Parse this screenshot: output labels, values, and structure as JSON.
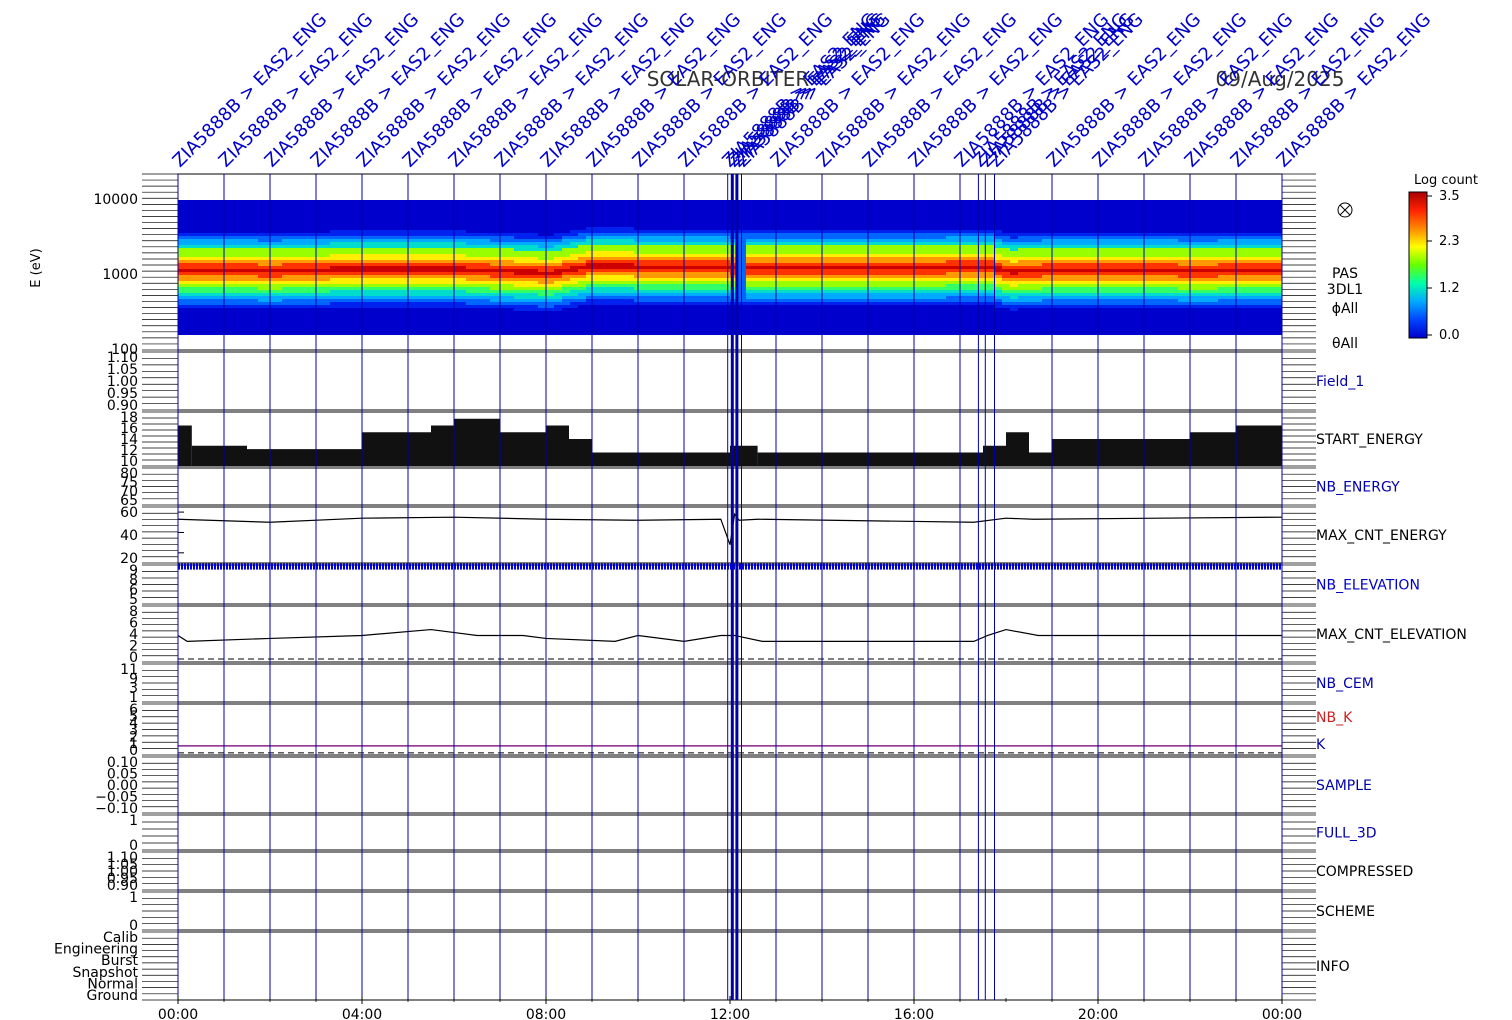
{
  "page": {
    "title": "SOLAR-ORBITER",
    "date": "09/Aug/2025"
  },
  "event_markers": {
    "label": "ZIA5888B > EAS2_ENG",
    "hours": [
      0.0,
      1.0,
      2.0,
      3.0,
      4.0,
      5.0,
      6.0,
      7.0,
      8.0,
      9.0,
      10.0,
      11.0,
      11.95,
      12.05,
      12.15,
      12.25,
      13.0,
      14.0,
      15.0,
      16.0,
      17.0,
      17.4,
      17.55,
      17.75,
      19.0,
      20.0,
      21.0,
      22.0,
      23.0,
      24.0
    ],
    "thick_hours": [
      12.05,
      12.15
    ]
  },
  "colorbar": {
    "title": "Log count",
    "ticks": [
      "3.5",
      "2.3",
      "1.2",
      "0.0"
    ],
    "stops": [
      "#0000cc",
      "#0044ff",
      "#00aaff",
      "#00ffaa",
      "#66ff00",
      "#ffff00",
      "#ff8800",
      "#ff2200",
      "#aa0000"
    ]
  },
  "chart_data": {
    "type": "multi-panel timeseries",
    "title": "SOLAR-ORBITER",
    "date": "09/Aug/2025",
    "x_axis": {
      "range_hours": [
        0,
        24
      ],
      "ticks": [
        "00:00",
        "04:00",
        "08:00",
        "12:00",
        "16:00",
        "20:00",
        "00:00"
      ],
      "tick_hours": [
        0,
        4,
        8,
        12,
        16,
        20,
        24
      ]
    },
    "panels": [
      {
        "id": "spectrogram",
        "type": "heatmap",
        "ylabel": "E (eV)",
        "yscale": "log",
        "ylim": [
          100,
          10000
        ],
        "yticks": [
          "10000",
          "1000",
          "100"
        ],
        "right_labels": [
          "PAS",
          "3DL1",
          "ϕAll",
          "θAll"
        ],
        "zlabel": "Log count",
        "zlim": [
          0.0,
          3.5
        ],
        "peak_energy_ev": {
          "hours": [
            0,
            2,
            4,
            6,
            8,
            9,
            10,
            12,
            13,
            16,
            17.5,
            18,
            19,
            22,
            24
          ],
          "values": [
            850,
            830,
            870,
            860,
            780,
            950,
            920,
            900,
            880,
            890,
            920,
            800,
            850,
            830,
            840
          ]
        }
      },
      {
        "id": "field1",
        "type": "line",
        "name": "Field_1",
        "name_color": "#0000aa",
        "yticks": [
          "1.10",
          "1.05",
          "1.00",
          "0.95",
          "0.90"
        ],
        "ylim": [
          0.88,
          1.12
        ]
      },
      {
        "id": "start_energy",
        "type": "bar",
        "name": "START_ENERGY",
        "name_color": "#000000",
        "yticks": [
          "18",
          "16",
          "14",
          "12",
          "10"
        ],
        "ylim": [
          10,
          18
        ],
        "hours": [
          0,
          0.3,
          1.5,
          3.5,
          4.0,
          5.0,
          5.5,
          6.0,
          7.0,
          8.0,
          8.5,
          9.0,
          10.0,
          11.0,
          12.0,
          12.6,
          13.0,
          16.0,
          17.5,
          18.0,
          18.5,
          19.0,
          20.0,
          22.0,
          23.0,
          24.0
        ],
        "values": [
          16,
          13,
          12.5,
          12.5,
          15,
          15,
          16,
          17,
          15,
          16,
          14,
          12,
          12,
          12,
          13,
          12,
          12,
          12,
          13,
          15,
          12,
          14,
          14,
          15,
          16,
          16
        ]
      },
      {
        "id": "nb_energy",
        "type": "line",
        "name": "NB_ENERGY",
        "name_color": "#0000aa",
        "yticks": [
          "80",
          "75",
          "70",
          "65"
        ],
        "ylim": [
          63,
          82
        ]
      },
      {
        "id": "max_cnt_energy",
        "type": "line",
        "name": "MAX_CNT_ENERGY",
        "name_color": "#000000",
        "yticks": [
          "60",
          "40",
          "20"
        ],
        "ylim": [
          10,
          65
        ],
        "hours": [
          0,
          2,
          4,
          6,
          8,
          10,
          11.8,
          12.0,
          12.1,
          12.2,
          12.6,
          17.3,
          18.0,
          18.6,
          24
        ],
        "values": [
          53,
          50,
          54,
          55,
          53,
          52,
          53,
          28,
          58,
          52,
          53,
          50,
          54,
          53,
          55
        ]
      },
      {
        "id": "nb_elevation",
        "type": "line",
        "name": "NB_ELEVATION",
        "name_color": "#0000cc",
        "yticks": [
          "9",
          "8",
          "6",
          "5"
        ],
        "ylim": [
          4.5,
          9.2
        ],
        "value": 9
      },
      {
        "id": "max_cnt_elevation",
        "type": "step",
        "name": "MAX_CNT_ELEVATION",
        "name_color": "#000000",
        "yticks": [
          "8",
          "6",
          "4",
          "2",
          "0"
        ],
        "ylim": [
          -0.5,
          9
        ],
        "hours": [
          0,
          0.2,
          2.0,
          4.0,
          5.5,
          6.5,
          7.5,
          8.0,
          9.5,
          10.0,
          11.0,
          11.8,
          12.1,
          12.7,
          17.3,
          17.6,
          18.0,
          18.7,
          19.5,
          21.0,
          21.8,
          22.0,
          24.0
        ],
        "values": [
          4,
          3,
          3.5,
          4,
          5,
          4,
          4,
          3.5,
          3,
          4,
          3,
          4,
          4,
          3,
          3,
          4,
          5,
          4,
          4,
          4,
          4,
          4,
          4
        ]
      },
      {
        "id": "nb_cem",
        "type": "line",
        "name": "NB_CEM",
        "name_color": "#0000aa",
        "yticks": [
          "11",
          "9",
          "3",
          "1"
        ],
        "ylim": [
          0,
          12
        ]
      },
      {
        "id": "nb_k",
        "type": "line",
        "name": "NB_K",
        "name_color": "#cc2222",
        "name2": "K",
        "name2_color": "#0000aa",
        "yticks": [
          "6",
          "5",
          "4",
          "3",
          "2",
          "1",
          "0"
        ],
        "ylim": [
          -0.3,
          7
        ],
        "value": 1
      },
      {
        "id": "sample",
        "type": "line",
        "name": "SAMPLE",
        "name_color": "#0000aa",
        "yticks": [
          "0.10",
          "0.05",
          "0.00",
          "−0.05",
          "−0.10"
        ],
        "ylim": [
          -0.12,
          0.12
        ]
      },
      {
        "id": "full_3d",
        "type": "line",
        "name": "FULL_3D",
        "name_color": "#0000aa",
        "yticks": [
          "1",
          "0"
        ],
        "ylim": [
          -0.3,
          1.5
        ]
      },
      {
        "id": "compressed",
        "type": "line",
        "name": "COMPRESSED",
        "name_color": "#000000",
        "yticks": [
          "1.10",
          "1.05",
          "1.00",
          "0.95",
          "0.90"
        ],
        "ylim": [
          0.88,
          1.12
        ]
      },
      {
        "id": "scheme",
        "type": "line",
        "name": "SCHEME",
        "name_color": "#000000",
        "yticks": [
          "1",
          "0"
        ],
        "ylim": [
          -0.3,
          1.4
        ]
      },
      {
        "id": "info",
        "type": "line",
        "name": "INFO",
        "name_color": "#000000",
        "yticks": [
          "Calib",
          "Engineering",
          "Burst",
          "Snapshot",
          "Normal",
          "Ground"
        ],
        "ylim": [
          0,
          6
        ]
      }
    ]
  }
}
